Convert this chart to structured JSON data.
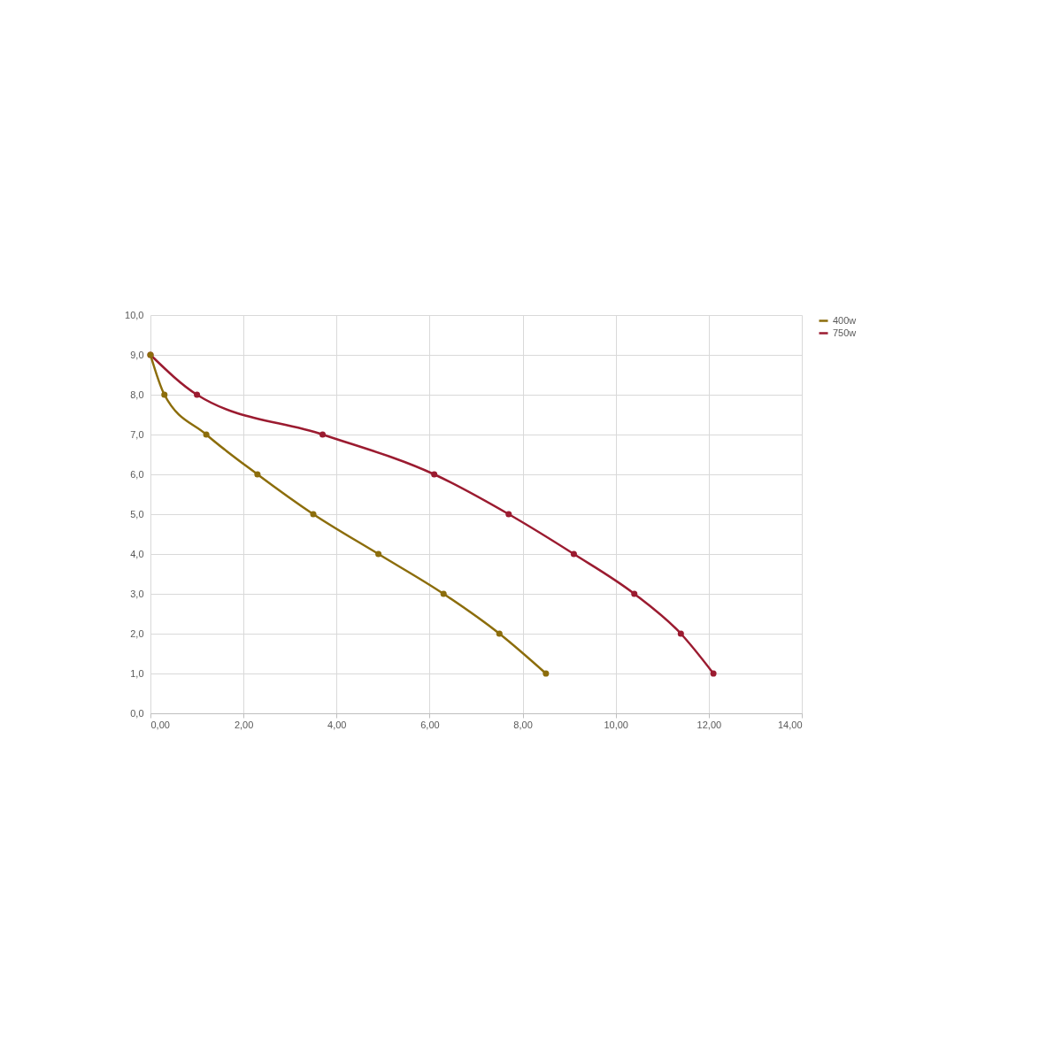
{
  "chart_data": {
    "type": "line",
    "x": [
      0,
      0.3,
      1.2,
      2.3,
      3.5,
      4.9,
      6.3,
      7.5,
      8.5
    ],
    "series": [
      {
        "name": "400w",
        "color": "#8c6d0b",
        "values": [
          9,
          8,
          7,
          6,
          5,
          4,
          3,
          2,
          1
        ]
      },
      {
        "name": "750w",
        "color": "#9b1b30",
        "x": [
          0,
          1.0,
          3.7,
          6.1,
          7.7,
          9.1,
          10.4,
          11.4,
          12.1
        ],
        "values": [
          9,
          8,
          7,
          6,
          5,
          4,
          3,
          2,
          1
        ]
      }
    ],
    "xlim": [
      0,
      14
    ],
    "xticks": [
      {
        "value": 0,
        "label": "0,00"
      },
      {
        "value": 2,
        "label": "2,00"
      },
      {
        "value": 4,
        "label": "4,00"
      },
      {
        "value": 6,
        "label": "6,00"
      },
      {
        "value": 8,
        "label": "8,00"
      },
      {
        "value": 10,
        "label": "10,00"
      },
      {
        "value": 12,
        "label": "12,00"
      },
      {
        "value": 14,
        "label": "14,00"
      }
    ],
    "ylim": [
      0,
      10
    ],
    "yticks": [
      {
        "value": 0,
        "label": "0,0"
      },
      {
        "value": 1,
        "label": "1,0"
      },
      {
        "value": 2,
        "label": "2,0"
      },
      {
        "value": 3,
        "label": "3,0"
      },
      {
        "value": 4,
        "label": "4,0"
      },
      {
        "value": 5,
        "label": "5,0"
      },
      {
        "value": 6,
        "label": "6,0"
      },
      {
        "value": 7,
        "label": "7,0"
      },
      {
        "value": 8,
        "label": "8,0"
      },
      {
        "value": 9,
        "label": "9,0"
      },
      {
        "value": 10,
        "label": "10,0"
      }
    ],
    "grid": true,
    "legend": "right",
    "marker": "circle",
    "line_style": "solid"
  }
}
